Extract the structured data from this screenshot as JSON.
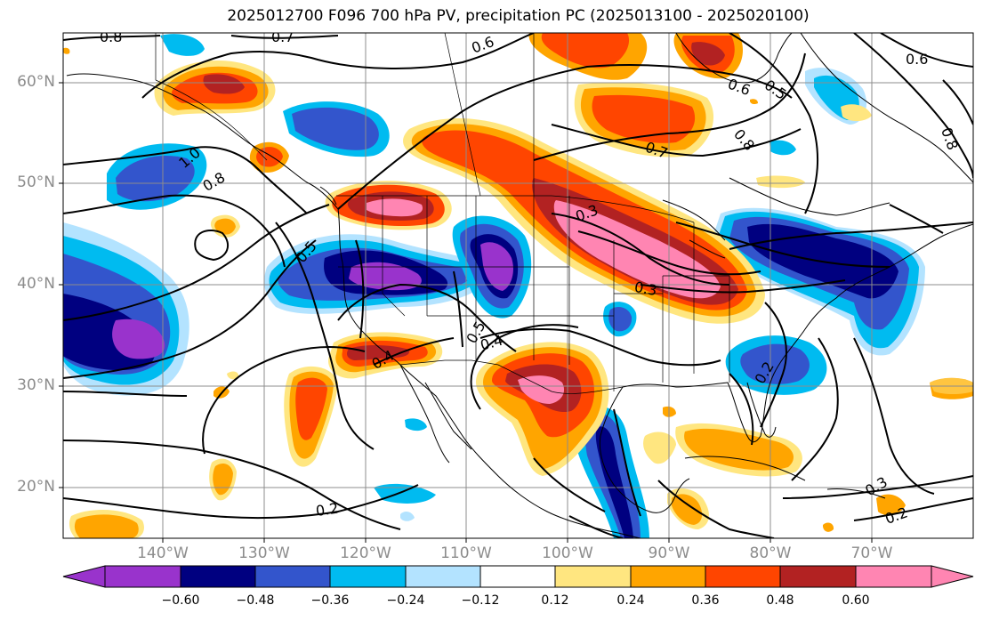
{
  "title": "2025012700 F096 700 hPa PV, precipitation PC (2025013100 - 2025020100)",
  "lat_labels": [
    "60°N",
    "50°N",
    "40°N",
    "30°N",
    "20°N"
  ],
  "lon_labels": [
    "140°W",
    "130°W",
    "120°W",
    "110°W",
    "100°W",
    "90°W",
    "80°W",
    "70°W"
  ],
  "contour_labels": [
    "0.8",
    "0.7",
    "0.6",
    "0.6",
    "0.6",
    "0.5",
    "0.8",
    "0.7",
    "0.8",
    "1.0",
    "0.8",
    "0.5",
    "0.3",
    "0.3",
    "0.5",
    "0.4",
    "0.4",
    "0.2",
    "0.2",
    "0.3",
    "0.2"
  ],
  "colorbar": {
    "ticks": [
      "−0.60",
      "−0.48",
      "−0.36",
      "−0.24",
      "−0.12",
      "0.12",
      "0.24",
      "0.36",
      "0.48",
      "0.60"
    ],
    "colors": [
      "#9933cc",
      "#000080",
      "#3355cc",
      "#00bbf0",
      "#b3e3ff",
      "#ffffff",
      "#ffe680",
      "#ffa500",
      "#ff4500",
      "#b22222",
      "#ff85b2"
    ]
  }
}
